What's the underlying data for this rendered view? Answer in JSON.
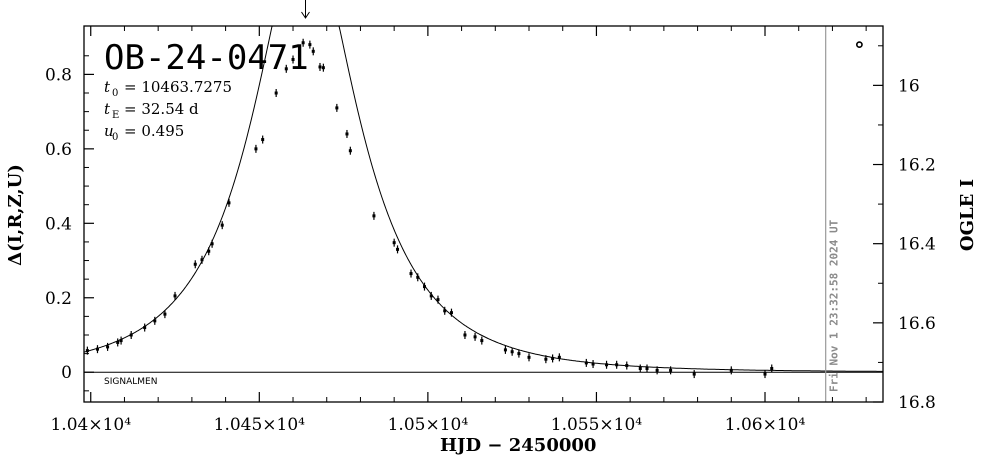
{
  "chart_data": {
    "type": "scatter",
    "event_id": "OB-24-0471",
    "params": {
      "t0_label": "t",
      "t0_sub": "0",
      "t0_value": "= 10463.7275",
      "tE_label": "t",
      "tE_sub": "E",
      "tE_value": "= 32.54 d",
      "u0_label": "u",
      "u0_sub": "0",
      "u0_value": "= 0.495"
    },
    "xlabel": "HJD  −  2450000",
    "ylabel": "Δ(I,R,Z,U)",
    "ylabel_right": "OGLE I",
    "xlim": [
      10398,
      10635
    ],
    "ylim": [
      -0.08,
      0.93
    ],
    "right_ylim": [
      16.8,
      15.85
    ],
    "x_ticks": [
      10400,
      10450,
      10500,
      10550,
      10600
    ],
    "x_tick_labels": [
      "1.04×10⁴",
      "1.045×10⁴",
      "1.05×10⁴",
      "1.055×10⁴",
      "1.06×10⁴"
    ],
    "y_ticks": [
      0,
      0.2,
      0.4,
      0.6,
      0.8
    ],
    "y_tick_labels": [
      "0",
      "0.2",
      "0.4",
      "0.6",
      "0.8"
    ],
    "right_ticks": [
      16,
      16.2,
      16.4,
      16.6,
      16.8
    ],
    "right_tick_labels": [
      "16",
      "16.2",
      "16.4",
      "16.6",
      "16.8"
    ],
    "current_time_x": 10618,
    "current_time_label": "Fri Nov  1 23:32:58 2024 UT",
    "peak_arrow_x": 10463.7,
    "footer_label": "SIGNALMEN",
    "model": {
      "t0": 10463.7275,
      "tE": 32.54,
      "u0": 0.495,
      "baseline": 0.0
    },
    "points": [
      [
        10399,
        0.058
      ],
      [
        10402,
        0.062
      ],
      [
        10405,
        0.068
      ],
      [
        10408,
        0.08
      ],
      [
        10409,
        0.085
      ],
      [
        10412,
        0.1
      ],
      [
        10416,
        0.12
      ],
      [
        10419,
        0.138
      ],
      [
        10422,
        0.156
      ],
      [
        10425,
        0.205
      ],
      [
        10431,
        0.29
      ],
      [
        10433,
        0.302
      ],
      [
        10435,
        0.325
      ],
      [
        10436,
        0.345
      ],
      [
        10439,
        0.395
      ],
      [
        10441,
        0.455
      ],
      [
        10449,
        0.6
      ],
      [
        10451,
        0.625
      ],
      [
        10455,
        0.75
      ],
      [
        10458,
        0.815
      ],
      [
        10460,
        0.84
      ],
      [
        10463,
        0.885
      ],
      [
        10465,
        0.88
      ],
      [
        10466,
        0.862
      ],
      [
        10468,
        0.82
      ],
      [
        10469,
        0.818
      ],
      [
        10473,
        0.71
      ],
      [
        10476,
        0.64
      ],
      [
        10477,
        0.595
      ],
      [
        10484,
        0.42
      ],
      [
        10490,
        0.348
      ],
      [
        10491,
        0.33
      ],
      [
        10495,
        0.265
      ],
      [
        10497,
        0.255
      ],
      [
        10499,
        0.23
      ],
      [
        10501,
        0.205
      ],
      [
        10503,
        0.195
      ],
      [
        10505,
        0.165
      ],
      [
        10507,
        0.16
      ],
      [
        10511,
        0.1
      ],
      [
        10514,
        0.095
      ],
      [
        10516,
        0.085
      ],
      [
        10523,
        0.06
      ],
      [
        10525,
        0.055
      ],
      [
        10527,
        0.05
      ],
      [
        10530,
        0.04
      ],
      [
        10535,
        0.035
      ],
      [
        10537,
        0.037
      ],
      [
        10539,
        0.04
      ],
      [
        10547,
        0.025
      ],
      [
        10549,
        0.022
      ],
      [
        10553,
        0.02
      ],
      [
        10556,
        0.02
      ],
      [
        10559,
        0.018
      ],
      [
        10563,
        0.01
      ],
      [
        10565,
        0.01
      ],
      [
        10568,
        0.005
      ],
      [
        10572,
        0.005
      ],
      [
        10579,
        -0.005
      ],
      [
        10590,
        0.005
      ],
      [
        10600,
        -0.005
      ],
      [
        10602,
        0.01
      ]
    ],
    "offscale_point": [
      10628,
      0.88
    ]
  }
}
